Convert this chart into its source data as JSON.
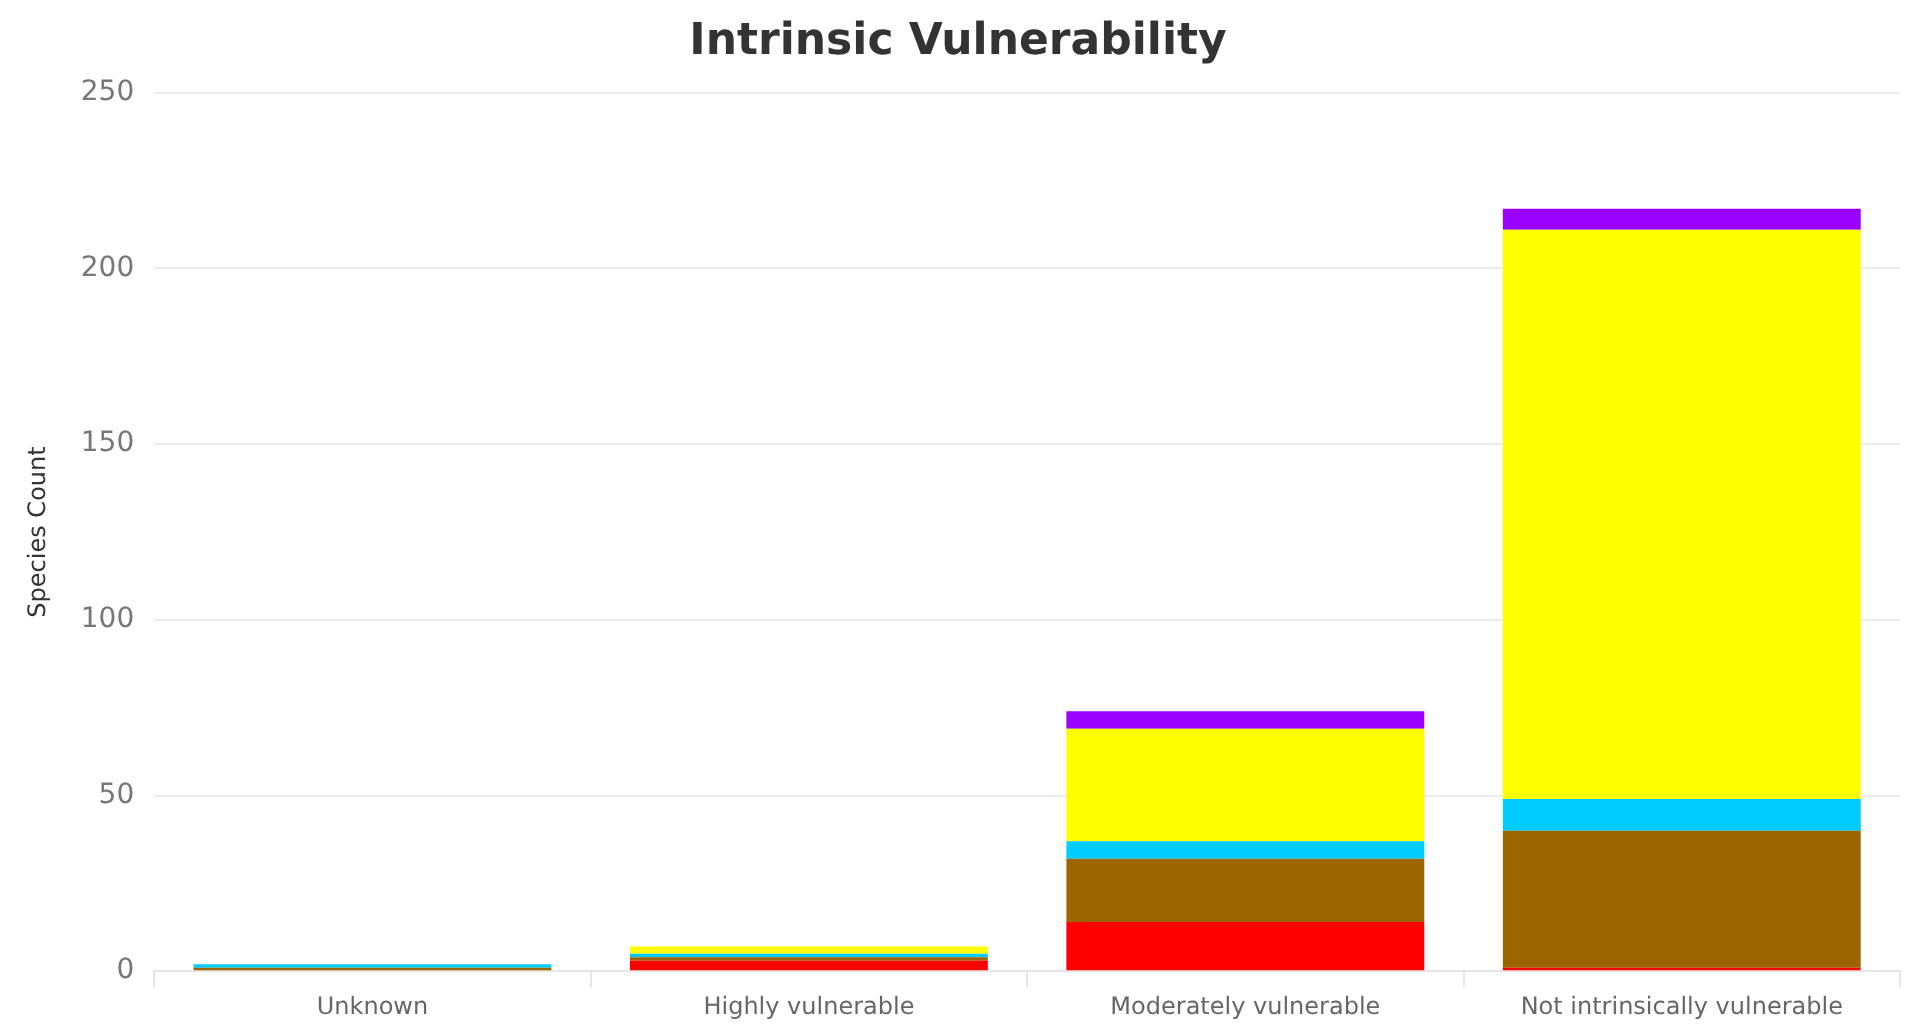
{
  "chart_data": {
    "type": "bar",
    "title": "Intrinsic Vulnerability",
    "ylabel": "Species Count",
    "categories": [
      "Unknown",
      "Highly vulnerable",
      "Moderately vulnerable",
      "Not intrinsically vulnerable"
    ],
    "stacked": true,
    "series": [
      {
        "color": "#ff0000",
        "values": [
          0,
          3,
          14,
          1
        ]
      },
      {
        "color": "#9c6500",
        "values": [
          1,
          1,
          18,
          39
        ]
      },
      {
        "color": "#00ccff",
        "values": [
          1,
          1,
          5,
          9
        ]
      },
      {
        "color": "#ffff00",
        "values": [
          0,
          2,
          32,
          162
        ]
      },
      {
        "color": "#9900ff",
        "values": [
          0,
          0,
          5,
          6
        ]
      }
    ],
    "ylim": [
      0,
      250
    ],
    "yticks": [
      0,
      50,
      100,
      150,
      200,
      250
    ],
    "grid": "y",
    "legend": false
  }
}
